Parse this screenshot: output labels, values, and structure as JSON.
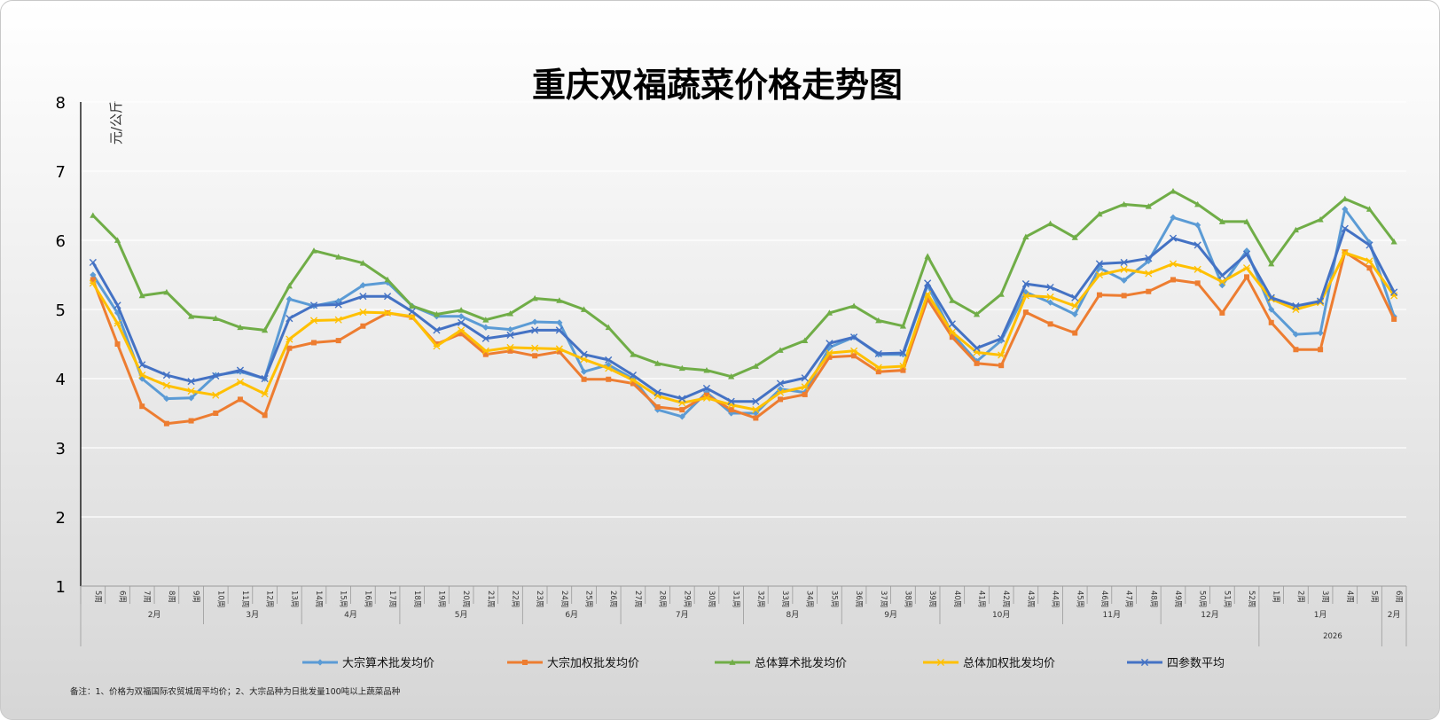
{
  "chart_data": {
    "type": "line",
    "title": "重庆双福蔬菜价格走势图",
    "ylabel": "元/公斤",
    "ylim": [
      1,
      8
    ],
    "yticks": [
      "1",
      "2",
      "3",
      "4",
      "5",
      "6",
      "7",
      "8"
    ],
    "grid": true,
    "legend_position": "bottom",
    "x": [
      "5周",
      "6周",
      "7周",
      "8周",
      "9周",
      "10周",
      "11周",
      "12周",
      "13周",
      "14周",
      "15周",
      "16周",
      "17周",
      "18周",
      "19周",
      "20周",
      "21周",
      "22周",
      "23周",
      "24周",
      "25周",
      "26周",
      "27周",
      "28周",
      "29周",
      "30周",
      "31周",
      "32周",
      "33周",
      "34周",
      "35周",
      "36周",
      "37周",
      "38周",
      "39周",
      "40周",
      "41周",
      "42周",
      "43周",
      "44周",
      "45周",
      "46周",
      "47周",
      "48周",
      "49周",
      "50周",
      "51周",
      "52周",
      "1周",
      "2周",
      "3周",
      "4周",
      "5周",
      "6周"
    ],
    "month_groups": [
      {
        "label": "2月",
        "start": 1,
        "end": 4
      },
      {
        "label": "3月",
        "start": 5,
        "end": 8
      },
      {
        "label": "4月",
        "start": 9,
        "end": 12
      },
      {
        "label": "5月",
        "start": 13,
        "end": 17
      },
      {
        "label": "6月",
        "start": 18,
        "end": 21
      },
      {
        "label": "7月",
        "start": 22,
        "end": 26
      },
      {
        "label": "8月",
        "start": 27,
        "end": 30
      },
      {
        "label": "9月",
        "start": 31,
        "end": 34
      },
      {
        "label": "10月",
        "start": 35,
        "end": 39
      },
      {
        "label": "11月",
        "start": 40,
        "end": 43
      },
      {
        "label": "12月",
        "start": 44,
        "end": 47
      },
      {
        "label": "1月",
        "start": 48,
        "end": 52
      },
      {
        "label": "2月",
        "start": 53,
        "end": 53
      }
    ],
    "year_groups": [
      {
        "label": "2026",
        "start": 48,
        "end": 53
      }
    ],
    "series": [
      {
        "name": "大宗算术批发均价",
        "color": "#5b9bd5",
        "marker": "diamond",
        "values": [
          5.5,
          4.95,
          4.0,
          3.71,
          3.72,
          4.05,
          4.1,
          4.0,
          5.15,
          5.05,
          5.12,
          5.35,
          5.39,
          5.05,
          4.9,
          4.9,
          4.74,
          4.71,
          4.82,
          4.81,
          4.1,
          4.2,
          4.0,
          3.55,
          3.45,
          3.8,
          3.5,
          3.5,
          3.85,
          3.8,
          4.45,
          4.6,
          4.35,
          4.35,
          5.35,
          4.65,
          4.25,
          4.55,
          5.25,
          5.1,
          4.93,
          5.6,
          5.42,
          5.7,
          6.33,
          6.22,
          5.35,
          5.85,
          5.0,
          4.64,
          4.66,
          6.45,
          5.97,
          4.9
        ]
      },
      {
        "name": "大宗加权批发均价",
        "color": "#ed7d31",
        "marker": "square",
        "values": [
          5.43,
          4.5,
          3.6,
          3.35,
          3.39,
          3.5,
          3.7,
          3.47,
          4.44,
          4.52,
          4.55,
          4.76,
          4.95,
          4.89,
          4.5,
          4.65,
          4.35,
          4.4,
          4.33,
          4.39,
          3.99,
          3.99,
          3.93,
          3.59,
          3.55,
          3.76,
          3.55,
          3.43,
          3.7,
          3.77,
          4.31,
          4.33,
          4.1,
          4.12,
          5.15,
          4.6,
          4.22,
          4.19,
          4.96,
          4.79,
          4.66,
          5.21,
          5.2,
          5.26,
          5.43,
          5.38,
          4.95,
          5.47,
          4.81,
          4.42,
          4.42,
          5.83,
          5.6,
          4.86
        ]
      },
      {
        "name": "总体算术批发均价",
        "color": "#70ad47",
        "marker": "triangle",
        "values": [
          6.36,
          6.0,
          5.2,
          5.25,
          4.9,
          4.87,
          4.74,
          4.7,
          5.34,
          5.85,
          5.76,
          5.67,
          5.43,
          5.05,
          4.93,
          4.99,
          4.85,
          4.94,
          5.16,
          5.13,
          5.0,
          4.74,
          4.35,
          4.22,
          4.15,
          4.12,
          4.03,
          4.18,
          4.41,
          4.55,
          4.95,
          5.05,
          4.84,
          4.76,
          5.77,
          5.13,
          4.93,
          5.22,
          6.05,
          6.24,
          6.04,
          6.38,
          6.52,
          6.49,
          6.71,
          6.52,
          6.27,
          6.27,
          5.66,
          6.15,
          6.3,
          6.6,
          6.45,
          5.98
        ]
      },
      {
        "name": "总体加权批发均价",
        "color": "#ffc000",
        "marker": "star",
        "values": [
          5.38,
          4.8,
          4.05,
          3.9,
          3.82,
          3.76,
          3.95,
          3.78,
          4.57,
          4.84,
          4.85,
          4.96,
          4.95,
          4.9,
          4.47,
          4.7,
          4.4,
          4.45,
          4.44,
          4.43,
          4.28,
          4.15,
          3.98,
          3.75,
          3.65,
          3.72,
          3.62,
          3.55,
          3.8,
          3.88,
          4.37,
          4.4,
          4.16,
          4.18,
          5.22,
          4.67,
          4.38,
          4.34,
          5.2,
          5.18,
          5.05,
          5.5,
          5.58,
          5.52,
          5.66,
          5.58,
          5.4,
          5.6,
          5.15,
          5.0,
          5.1,
          5.82,
          5.7,
          5.2
        ]
      },
      {
        "name": "四参数平均",
        "color": "#4472c4",
        "marker": "x",
        "values": [
          5.68,
          5.06,
          4.2,
          4.05,
          3.96,
          4.04,
          4.12,
          4.0,
          4.87,
          5.06,
          5.07,
          5.19,
          5.19,
          4.97,
          4.7,
          4.81,
          4.58,
          4.63,
          4.7,
          4.7,
          4.35,
          4.27,
          4.05,
          3.8,
          3.71,
          3.86,
          3.67,
          3.67,
          3.93,
          4.01,
          4.51,
          4.6,
          4.36,
          4.37,
          5.38,
          4.79,
          4.44,
          4.58,
          5.37,
          5.32,
          5.17,
          5.66,
          5.68,
          5.74,
          6.03,
          5.93,
          5.49,
          5.8,
          5.17,
          5.05,
          5.12,
          6.17,
          5.93,
          5.25
        ]
      }
    ]
  },
  "note": "备注：1、价格为双福国际农贸城周平均价；2、大宗品种为日批发量100吨以上蔬菜品种"
}
